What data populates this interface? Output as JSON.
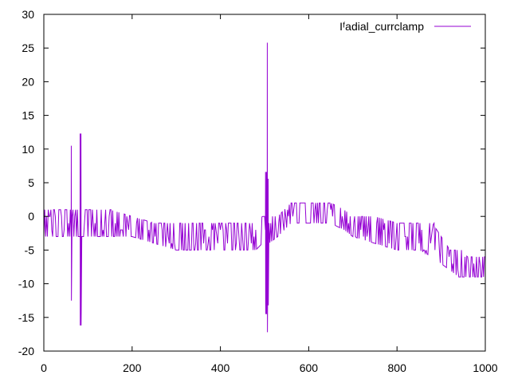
{
  "chart_data": {
    "type": "line",
    "title": "",
    "xlabel": "",
    "ylabel": "",
    "xlim": [
      0,
      1000
    ],
    "ylim": [
      -20,
      30
    ],
    "x_ticks": [
      0,
      200,
      400,
      600,
      800,
      1000
    ],
    "y_ticks": [
      -20,
      -15,
      -10,
      -5,
      0,
      5,
      10,
      15,
      20,
      25,
      30
    ],
    "grid": false,
    "legend_position": "top-right",
    "series": [
      {
        "name": "I_radial_currclamp",
        "legend_label": "Iᶠadial_currclamp",
        "color": "#9400d3",
        "sample_step": 2,
        "envelope": {
          "x": [
            0,
            20,
            60,
            100,
            150,
            200,
            250,
            300,
            350,
            400,
            450,
            480,
            495,
            510,
            530,
            560,
            600,
            650,
            680,
            700,
            750,
            800,
            830,
            850,
            880,
            900,
            920,
            940,
            960,
            980,
            1000
          ],
          "upper": [
            1,
            1,
            1,
            1,
            1,
            0,
            -1,
            -1,
            -1,
            -1,
            -1,
            -1,
            0,
            0,
            0,
            2,
            2,
            2,
            1,
            0,
            0,
            -1,
            -1,
            -1,
            -1,
            -3,
            -5,
            -5,
            -6,
            -6,
            -6
          ],
          "lower": [
            -3,
            -3,
            -3,
            -3,
            -3,
            -3,
            -4,
            -5,
            -5,
            -5,
            -5,
            -5,
            -4,
            -4,
            -3,
            -1,
            -1,
            -1,
            -2,
            -3,
            -4,
            -5,
            -5,
            -5,
            -6,
            -7,
            -8,
            -9,
            -9,
            -9,
            -9
          ]
        },
        "spikes": [
          {
            "x": 62,
            "high": 10.5,
            "low": -12.5
          },
          {
            "x": 83,
            "high": 12.3,
            "low": -16.2
          },
          {
            "x": 503,
            "high": 6.6,
            "low": -14.5
          },
          {
            "x": 505,
            "high": 25.8,
            "low": -17.2
          },
          {
            "x": 507,
            "high": 5.6,
            "low": -13.2
          }
        ]
      }
    ]
  }
}
